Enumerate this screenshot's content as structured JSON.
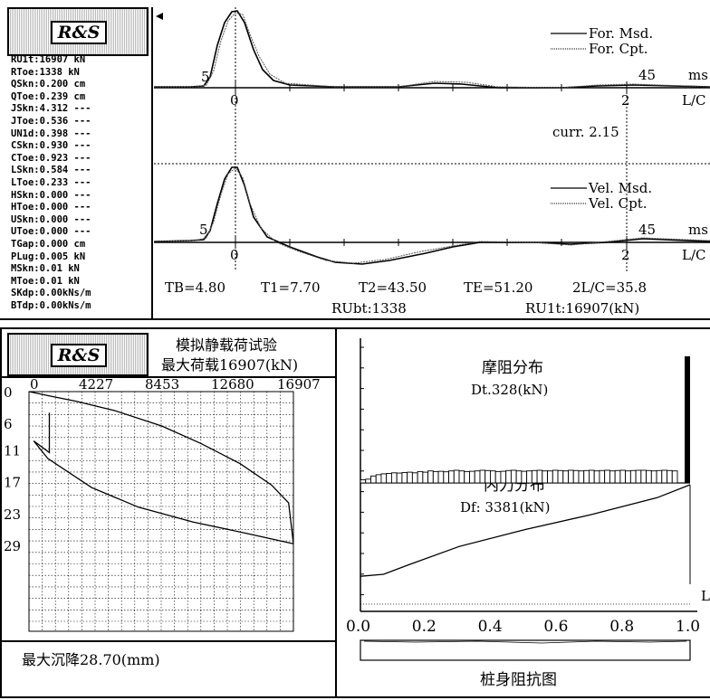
{
  "brand": "R&S",
  "params": [
    "RU1t:16907 kN",
    "RToe:1338 kN",
    "QSkn:0.200 cm",
    "QToe:0.239 cm",
    "JSkn:4.312 ---",
    "JToe:0.536 ---",
    "UN1d:0.398 ---",
    "CSkn:0.930 ---",
    "CToe:0.923 ---",
    "LSkn:0.584 ---",
    "LToe:0.233 ---",
    "HSkn:0.000 ---",
    "HToe:0.000 ---",
    "USkn:0.000 ---",
    "UToe:0.000 ---",
    "TGap:0.000 cm",
    "PLug:0.005 kN",
    "MSkn:0.01 kN",
    "MToe:0.01 kN",
    "SKdp:0.00kNs/m",
    "BTdp:0.00kNs/m"
  ],
  "signal": {
    "force_legend": [
      "For. Msd.",
      "For. Cpt."
    ],
    "velocity_legend": [
      "Vel. Msd.",
      "Vel. Cpt."
    ],
    "time_labels": [
      "5",
      "0",
      "2",
      "45",
      "ms",
      "L/C"
    ],
    "curr": "curr. 2.15",
    "tb": "TB=4.80",
    "t1": "T1=7.70",
    "t2": "T2=43.50",
    "te": "TE=51.20",
    "two_lc": "2L/C=35.8",
    "rubt": "RUbt:1338",
    "ru1t": "RU1t:16907(kN)"
  },
  "static_test": {
    "title": "模拟静载荷试验",
    "max_load_label": "最大荷载16907(kN)",
    "max_settlement": "最大沉降28.70(mm)"
  },
  "distribution": {
    "friction_title": "摩阻分布",
    "friction_value": "Dt.328(kN)",
    "force_title": "内力分布",
    "force_value": "Df: 3381(kN)",
    "l_label": "L",
    "impedance_title": "桩身阻抗图"
  },
  "chart_data": [
    {
      "type": "line",
      "xlim": [
        0,
        16907
      ],
      "ylim": [
        0,
        29
      ],
      "x_ticks": [
        "0",
        "4227",
        "8453",
        "12680",
        "16907"
      ],
      "y_ticks": [
        "0",
        "6",
        "11",
        "17",
        "23",
        "29"
      ],
      "grid": true,
      "series": [
        {
          "x": [
            0,
            1300,
            3000,
            5500,
            8500,
            11000,
            13500,
            15500,
            16600,
            16907
          ],
          "y": [
            0,
            0.8,
            1.8,
            3.6,
            6.5,
            9.8,
            13.6,
            17.6,
            21.0,
            28.7
          ]
        },
        {
          "x": [
            16907,
            14000,
            10500,
            7000,
            4000,
            1200,
            300,
            1300,
            1300
          ],
          "y": [
            28.7,
            26.8,
            24.6,
            21.8,
            18.1,
            12.6,
            9.3,
            11.5,
            4.0
          ]
        }
      ]
    },
    {
      "type": "bar",
      "xlim": [
        0,
        1
      ],
      "x_ticks": [
        "0.0",
        "0.2",
        "0.4",
        "0.6",
        "0.8",
        "1.0"
      ],
      "friction_bars": [
        0.25,
        0.3,
        0.55,
        0.65,
        0.72,
        0.75,
        0.8,
        0.78,
        0.82,
        0.85,
        0.8,
        0.9,
        0.85,
        0.95,
        0.9,
        0.92,
        0.88,
        0.95,
        1.0,
        0.95,
        0.9,
        0.92,
        0.95,
        1.0,
        0.98,
        0.95,
        0.9,
        0.92,
        0.98,
        1.0,
        0.95,
        0.92,
        0.95,
        0.98,
        1.0,
        0.95,
        0.95,
        1.0,
        0.98,
        0.95,
        1.0,
        0.98,
        0.95,
        0.98,
        1.0,
        0.95,
        0.98,
        1.0,
        0.95,
        0.98,
        1.0,
        0.95,
        0.98,
        1.0,
        1.0,
        0.98,
        0.95,
        0.98,
        1.0,
        0.98,
        0.95
      ],
      "toe_bar": 10.0,
      "internal_force": {
        "x": [
          0,
          0.07,
          0.15,
          0.3,
          0.5,
          0.7,
          0.9,
          1.0
        ],
        "y": [
          0.08,
          0.1,
          0.2,
          0.38,
          0.55,
          0.7,
          0.87,
          1.0
        ]
      }
    }
  ]
}
